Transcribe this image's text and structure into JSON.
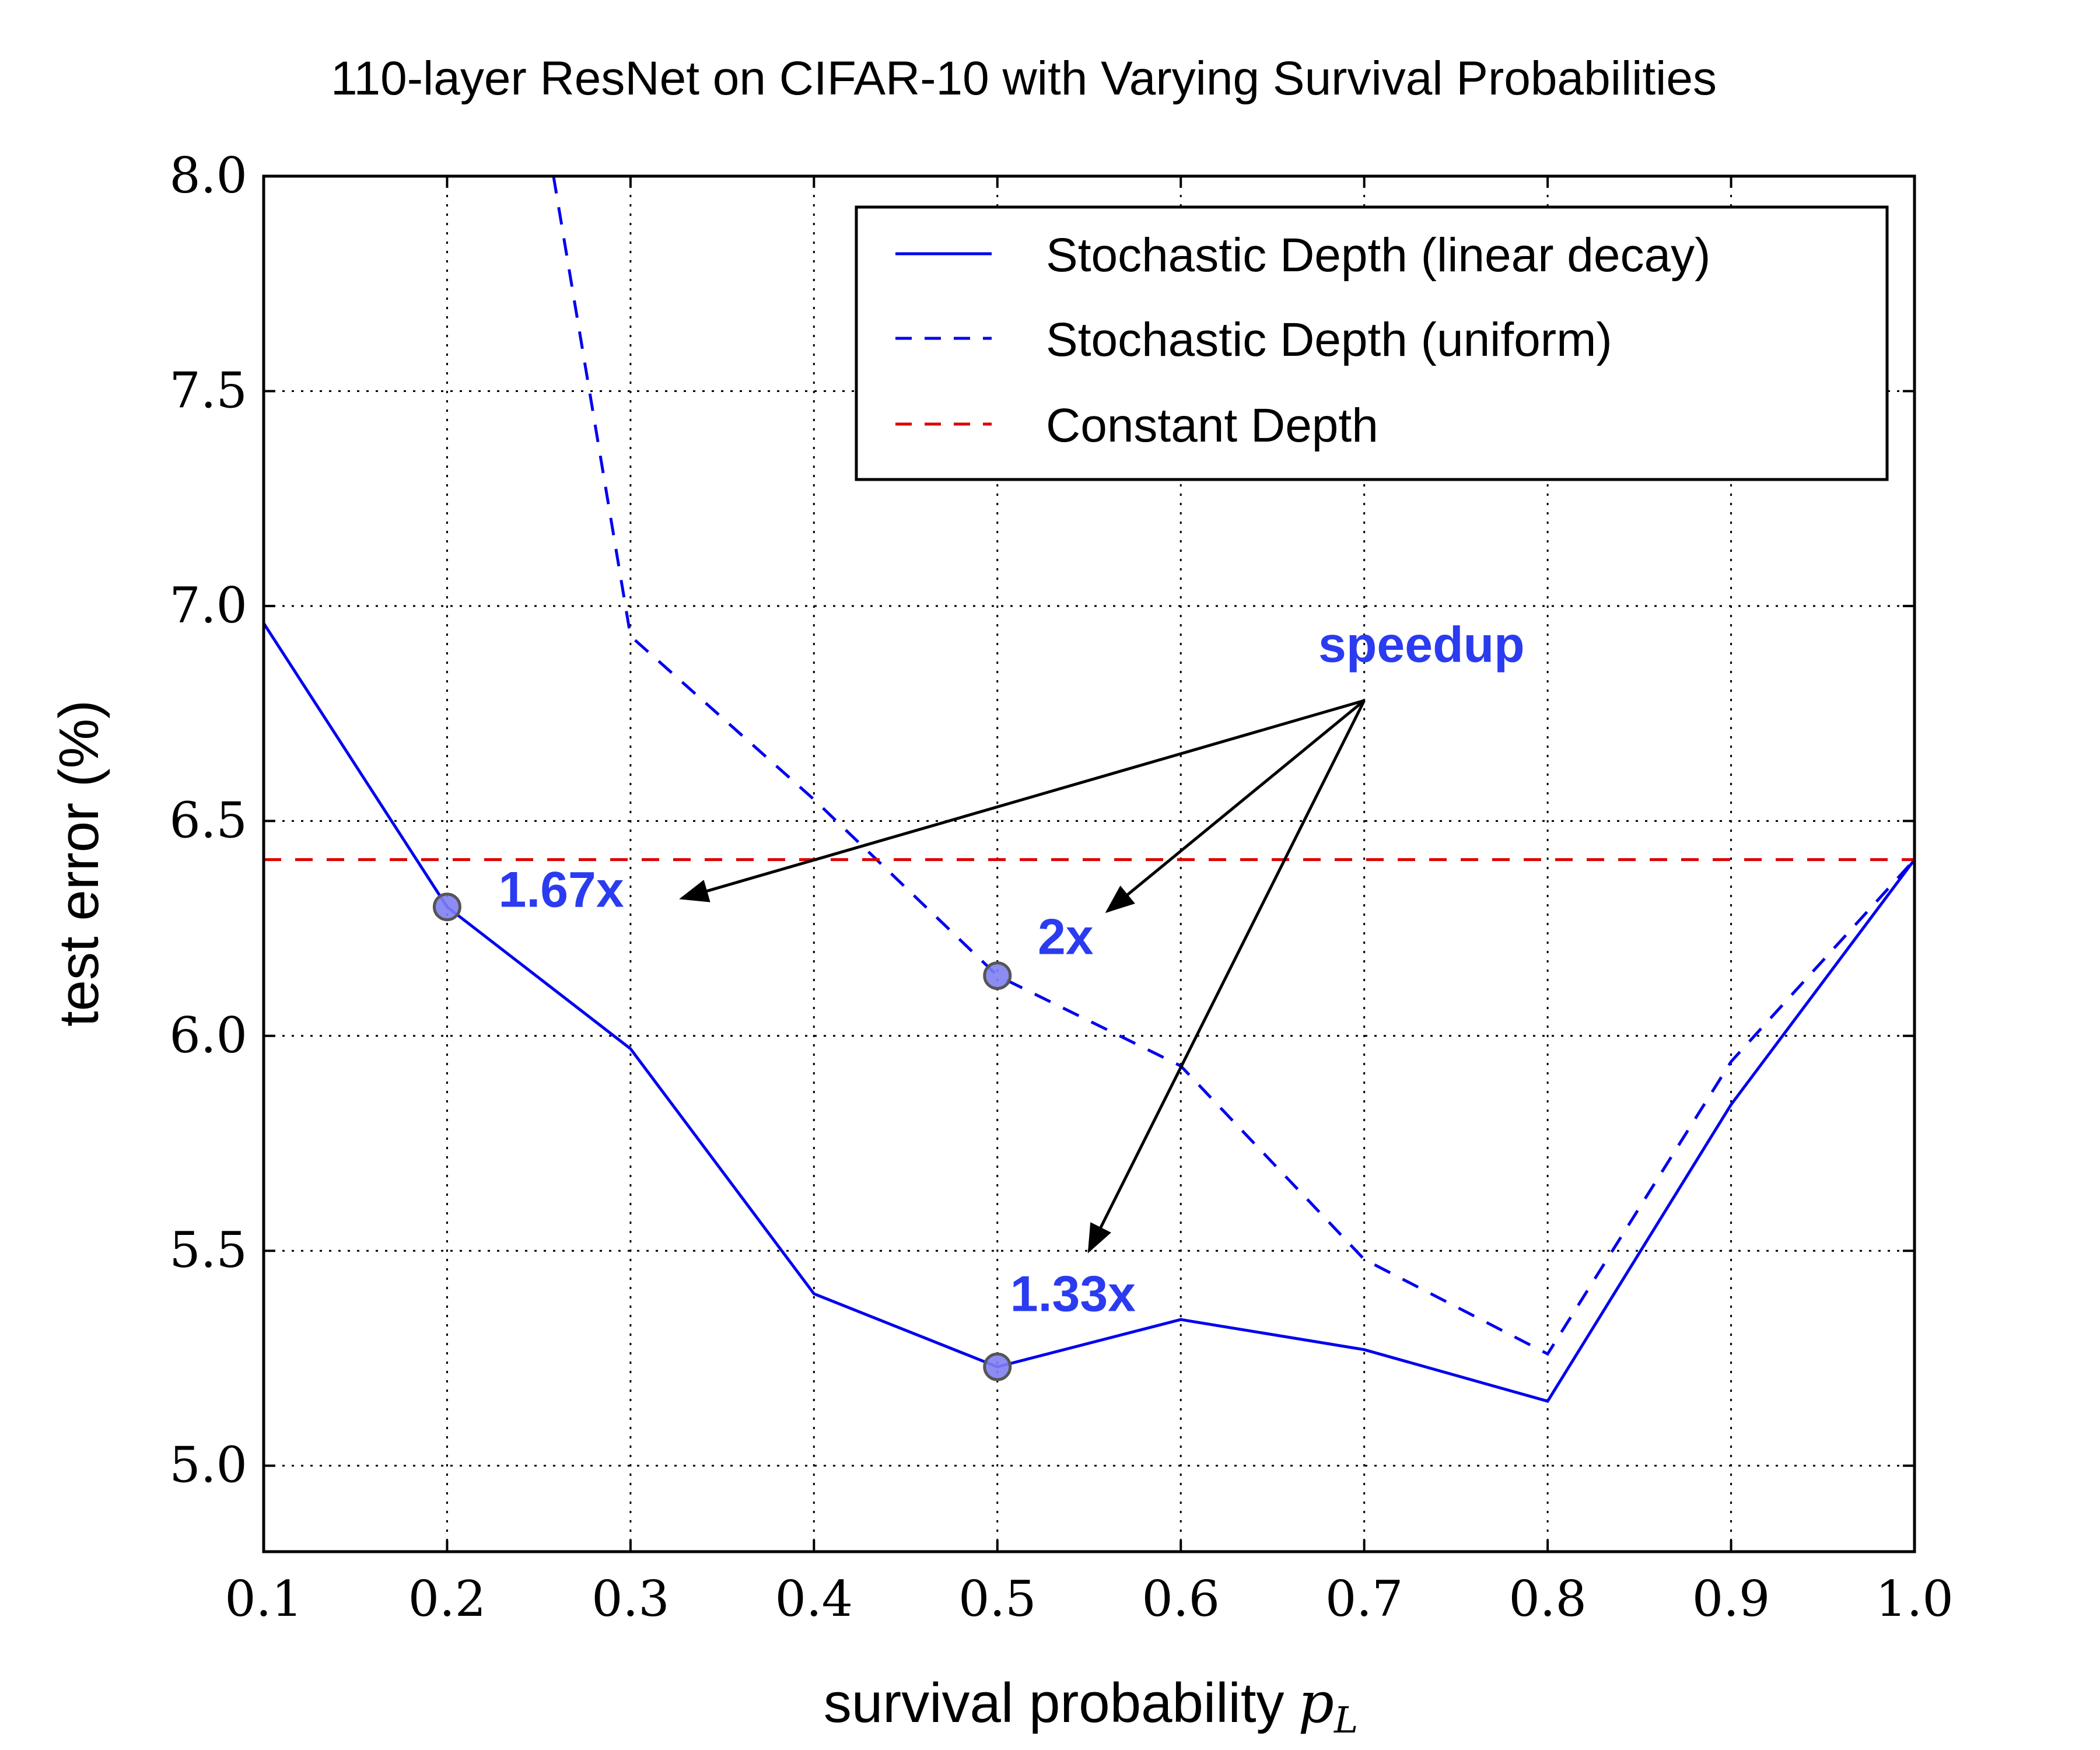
{
  "chart_data": {
    "type": "line",
    "title": "110-layer ResNet on CIFAR-10 with Varying Survival Probabilities",
    "xlabel": "survival probability",
    "xlabel_math": "p",
    "xlabel_math_sub": "L",
    "ylabel": "test error (%)",
    "xlim": [
      0.1,
      1.0
    ],
    "ylim": [
      4.8,
      8.0
    ],
    "xticks": [
      "0.1",
      "0.2",
      "0.3",
      "0.4",
      "0.5",
      "0.6",
      "0.7",
      "0.8",
      "0.9",
      "1.0"
    ],
    "yticks": [
      "5.0",
      "5.5",
      "6.0",
      "6.5",
      "7.0",
      "7.5",
      "8.0"
    ],
    "grid": true,
    "legend_position": "top-right",
    "series": [
      {
        "name": "Stochastic Depth (linear decay)",
        "style": "solid",
        "color": "#0000ee",
        "x": [
          0.1,
          0.2,
          0.3,
          0.4,
          0.5,
          0.6,
          0.7,
          0.8,
          0.9,
          1.0
        ],
        "y": [
          6.96,
          6.3,
          5.97,
          5.4,
          5.23,
          5.34,
          5.27,
          5.15,
          5.84,
          6.41
        ]
      },
      {
        "name": "Stochastic Depth (uniform)",
        "style": "dashed",
        "color": "#0000ee",
        "x": [
          0.258,
          0.3,
          0.4,
          0.5,
          0.6,
          0.7,
          0.8,
          0.9,
          1.0
        ],
        "y": [
          8.0,
          6.93,
          6.55,
          6.14,
          5.93,
          5.48,
          5.26,
          5.94,
          6.41
        ]
      },
      {
        "name": "Constant Depth",
        "style": "dashed",
        "color": "#dd0000",
        "x": [
          0.1,
          1.0
        ],
        "y": [
          6.41,
          6.41
        ]
      }
    ],
    "markers": [
      {
        "x": 0.2,
        "y": 6.3
      },
      {
        "x": 0.5,
        "y": 6.14
      },
      {
        "x": 0.5,
        "y": 5.23
      }
    ],
    "annotations": [
      {
        "text": "1.67x",
        "x": 0.228,
        "y": 6.3
      },
      {
        "text": "2x",
        "x": 0.522,
        "y": 6.19
      },
      {
        "text": "1.33x",
        "x": 0.507,
        "y": 5.36
      },
      {
        "text": "speedup",
        "x": 0.675,
        "y": 6.87
      }
    ],
    "arrows": [
      {
        "from": [
          0.7,
          6.78
        ],
        "to": [
          0.328,
          6.32
        ]
      },
      {
        "from": [
          0.7,
          6.78
        ],
        "to": [
          0.56,
          6.29
        ]
      },
      {
        "from": [
          0.7,
          6.78
        ],
        "to": [
          0.55,
          5.5
        ]
      }
    ]
  }
}
